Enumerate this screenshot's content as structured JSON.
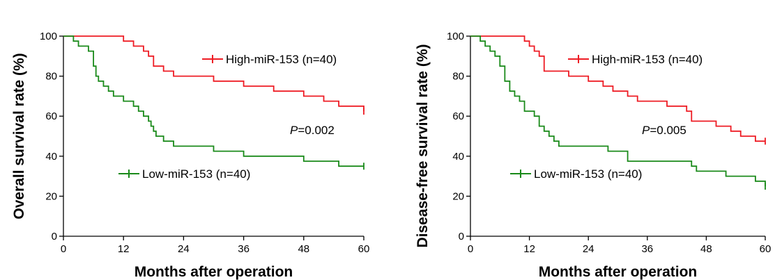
{
  "chart_data": [
    {
      "type": "line",
      "step": true,
      "xlabel": "Months after operation",
      "ylabel": "Overall survival rate (%)",
      "xlim": [
        0,
        60
      ],
      "ylim": [
        0,
        100
      ],
      "xticks": [
        0,
        12,
        24,
        36,
        48,
        60
      ],
      "yticks": [
        0,
        20,
        40,
        60,
        80,
        100
      ],
      "grid": false,
      "p_value": {
        "label": "P",
        "text": "=0.002"
      },
      "series": [
        {
          "name": "High-miR-153 (n=40)",
          "color": "#ee1c24",
          "x": [
            0,
            10,
            12,
            14,
            16,
            17,
            18,
            20,
            22,
            30,
            36,
            42,
            48,
            52,
            55,
            60
          ],
          "y": [
            100,
            100,
            97.5,
            95,
            92.5,
            90,
            85,
            82.5,
            80,
            77.5,
            75,
            72.5,
            70,
            67.5,
            65,
            62.5
          ]
        },
        {
          "name": "Low-miR-153 (n=40)",
          "color": "#1a8a1a",
          "x": [
            0,
            1,
            2,
            3,
            5,
            6,
            6.5,
            7,
            8,
            9,
            10,
            12,
            14,
            15,
            16,
            17,
            17.5,
            18,
            18.5,
            20,
            22,
            30,
            36,
            48,
            55,
            60
          ],
          "y": [
            100,
            100,
            97.5,
            95,
            92.5,
            85,
            80,
            77.5,
            75,
            72.5,
            70,
            67.5,
            65,
            62.5,
            60,
            57.5,
            55,
            52.5,
            50,
            47.5,
            45,
            42.5,
            40,
            37.5,
            35,
            35
          ]
        }
      ]
    },
    {
      "type": "line",
      "step": true,
      "xlabel": "Months after operation",
      "ylabel": "Disease-free survival rate (%)",
      "xlim": [
        0,
        60
      ],
      "ylim": [
        0,
        100
      ],
      "xticks": [
        0,
        12,
        24,
        36,
        48,
        60
      ],
      "yticks": [
        0,
        20,
        40,
        60,
        80,
        100
      ],
      "grid": false,
      "p_value": {
        "label": "P",
        "text": "=0.005"
      },
      "series": [
        {
          "name": "High-miR-153 (n=40)",
          "color": "#ee1c24",
          "x": [
            0,
            10,
            11,
            12,
            13,
            14,
            15,
            20,
            24,
            27,
            29,
            32,
            34,
            40,
            44,
            45,
            50,
            53,
            55,
            58,
            60
          ],
          "y": [
            100,
            100,
            97.5,
            95,
            92.5,
            90,
            82.5,
            80,
            77.5,
            75,
            72.5,
            70,
            67.5,
            65,
            62.5,
            57.5,
            55,
            52.5,
            50,
            47.5,
            47.5
          ]
        },
        {
          "name": "Low-miR-153 (n=40)",
          "color": "#1a8a1a",
          "x": [
            0,
            1,
            2,
            3,
            4,
            5,
            6,
            7,
            8,
            9,
            10,
            11,
            13,
            14,
            15,
            16,
            17,
            18,
            20,
            28,
            32,
            42,
            45,
            46,
            48,
            52,
            55,
            58,
            60
          ],
          "y": [
            100,
            100,
            97.5,
            95,
            92.5,
            90,
            85,
            77.5,
            72.5,
            70,
            67.5,
            62.5,
            60,
            55,
            52.5,
            50,
            47.5,
            45,
            45,
            42.5,
            37.5,
            37.5,
            35,
            32.5,
            32.5,
            30,
            30,
            27.5,
            25
          ]
        }
      ]
    }
  ]
}
